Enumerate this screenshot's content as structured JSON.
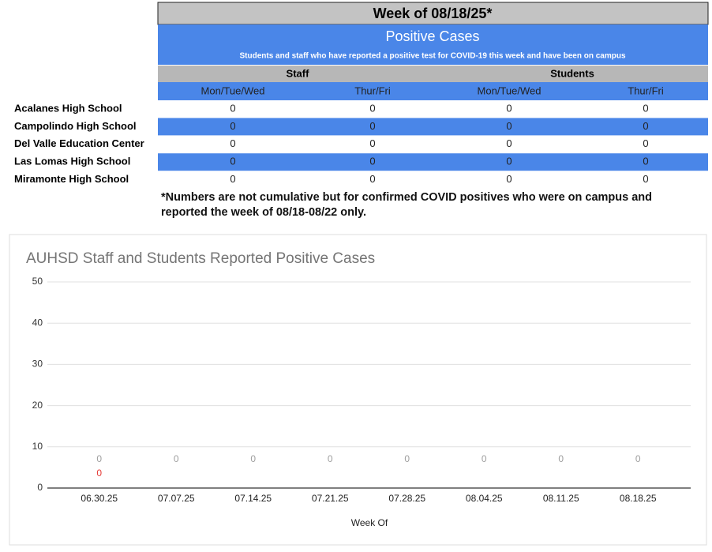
{
  "table": {
    "title": "Week of 08/18/25*",
    "heading": "Positive Cases",
    "subheading": "Students and staff who have reported a positive test for COVID-19 this week and have been on campus",
    "groups": [
      "Staff",
      "Students"
    ],
    "columns": [
      "Mon/Tue/Wed",
      "Thur/Fri",
      "Mon/Tue/Wed",
      "Thur/Fri"
    ],
    "rows": [
      {
        "school": "Acalanes High School",
        "values": [
          0,
          0,
          0,
          0
        ]
      },
      {
        "school": "Campolindo High School",
        "values": [
          0,
          0,
          0,
          0
        ]
      },
      {
        "school": "Del Valle Education Center",
        "values": [
          0,
          0,
          0,
          0
        ]
      },
      {
        "school": "Las Lomas High School",
        "values": [
          0,
          0,
          0,
          0
        ]
      },
      {
        "school": "Miramonte High School",
        "values": [
          0,
          0,
          0,
          0
        ]
      }
    ],
    "note": [
      "*Numbers are not cumulative but for confirmed COVID positives who were on campus and",
      "reported the week of 08/18-08/22 only."
    ]
  },
  "chart_data": {
    "type": "bar",
    "title": "AUHSD Staff and Students Reported Positive Cases",
    "x_label": "Week Of",
    "categories": [
      "06.30.25",
      "07.07.25",
      "07.14.25",
      "07.21.25",
      "07.28.25",
      "08.04.25",
      "08.11.25",
      "08.18.25"
    ],
    "series": [
      {
        "color": "#9e9e9e",
        "values": [
          0,
          0,
          0,
          0,
          0,
          0,
          0,
          0
        ]
      },
      {
        "color": "#e53935",
        "values": [
          0,
          null,
          null,
          null,
          null,
          null,
          null,
          null
        ]
      }
    ],
    "ylim": [
      0,
      50
    ],
    "yticks": [
      0,
      10,
      20,
      30,
      40,
      50
    ],
    "grid": true
  }
}
